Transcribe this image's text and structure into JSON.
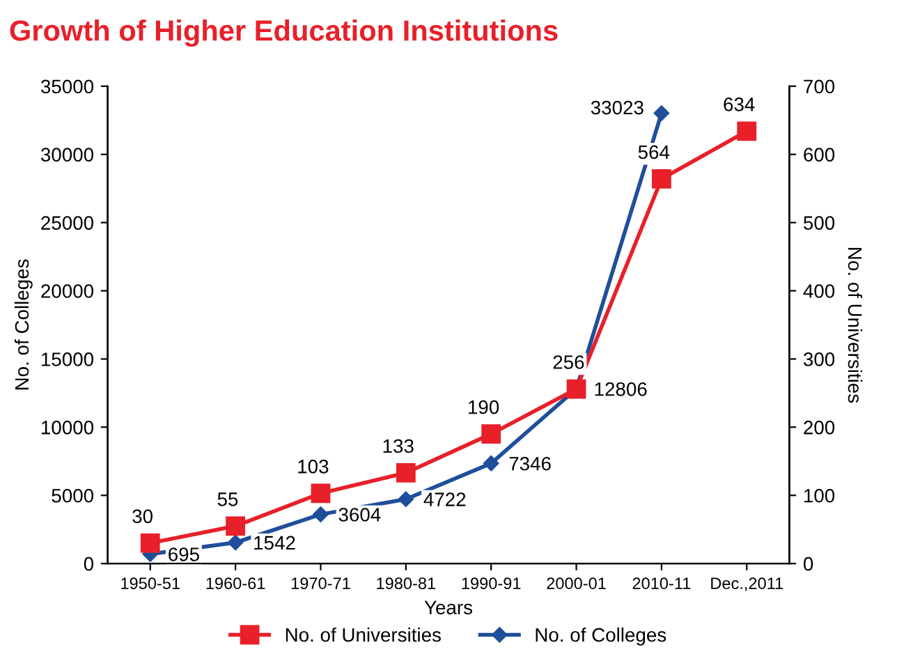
{
  "chart_data": {
    "type": "line",
    "title": "Growth of Higher Education Institutions",
    "xlabel": "Years",
    "ylabel": "No. of Colleges",
    "y2label": "No. of Universities",
    "categories": [
      "1950-51",
      "1960-61",
      "1970-71",
      "1980-81",
      "1990-91",
      "2000-01",
      "2010-11",
      "Dec.,2011"
    ],
    "series": [
      {
        "name": "No. of Universities",
        "color": "#e8202a",
        "marker": "square",
        "axis": "y2",
        "values": [
          30,
          55,
          103,
          133,
          190,
          256,
          564,
          634
        ]
      },
      {
        "name": "No. of Colleges",
        "color": "#1f4e9a",
        "marker": "diamond",
        "values": [
          695,
          1542,
          3604,
          4722,
          7346,
          12806,
          33023,
          null
        ]
      }
    ],
    "ylim": [
      0,
      35000
    ],
    "yticks": [
      0,
      5000,
      10000,
      15000,
      20000,
      25000,
      30000,
      35000
    ],
    "y2lim": [
      0,
      700
    ],
    "y2ticks": [
      0,
      100,
      200,
      300,
      400,
      500,
      600,
      700
    ],
    "data_labels": true,
    "legend": "bottom",
    "grid": false
  }
}
